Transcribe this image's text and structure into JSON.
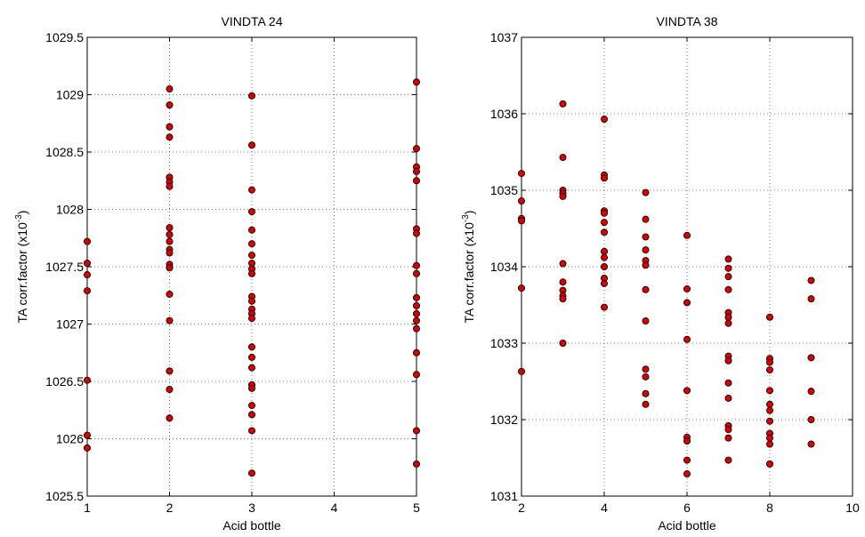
{
  "chart_data": [
    {
      "type": "scatter",
      "title": "VINDTA 24",
      "xlabel": "Acid bottle",
      "ylabel": "TA corr.factor (x10",
      "ylabel_exp": "-3",
      "ylabel_close": ")",
      "xlim": [
        1,
        5
      ],
      "ylim": [
        1025.5,
        1029.5
      ],
      "xticks": [
        1,
        2,
        3,
        4,
        5
      ],
      "yticks": [
        1025.5,
        1026,
        1026.5,
        1027,
        1027.5,
        1028,
        1028.5,
        1029,
        1029.5
      ],
      "xtick_labels": [
        "1",
        "2",
        "3",
        "4",
        "5"
      ],
      "ytick_labels": [
        "1025.5",
        "1026",
        "1026.5",
        "1027",
        "1027.5",
        "1028",
        "1028.5",
        "1029",
        "1029.5"
      ],
      "grid": true,
      "marker_color": "#d40000",
      "points": [
        [
          1,
          1027.72
        ],
        [
          1,
          1027.53
        ],
        [
          1,
          1027.43
        ],
        [
          1,
          1027.29
        ],
        [
          1,
          1026.51
        ],
        [
          1,
          1026.03
        ],
        [
          1,
          1025.92
        ],
        [
          2,
          1029.05
        ],
        [
          2,
          1028.91
        ],
        [
          2,
          1028.72
        ],
        [
          2,
          1028.63
        ],
        [
          2,
          1028.28
        ],
        [
          2,
          1028.24
        ],
        [
          2,
          1028.2
        ],
        [
          2,
          1027.84
        ],
        [
          2,
          1027.78
        ],
        [
          2,
          1027.72
        ],
        [
          2,
          1027.65
        ],
        [
          2,
          1027.62
        ],
        [
          2,
          1027.52
        ],
        [
          2,
          1027.49
        ],
        [
          2,
          1027.26
        ],
        [
          2,
          1027.03
        ],
        [
          2,
          1026.59
        ],
        [
          2,
          1026.43
        ],
        [
          2,
          1026.18
        ],
        [
          3,
          1028.99
        ],
        [
          3,
          1028.56
        ],
        [
          3,
          1028.17
        ],
        [
          3,
          1027.98
        ],
        [
          3,
          1027.82
        ],
        [
          3,
          1027.7
        ],
        [
          3,
          1027.6
        ],
        [
          3,
          1027.53
        ],
        [
          3,
          1027.48
        ],
        [
          3,
          1027.44
        ],
        [
          3,
          1027.24
        ],
        [
          3,
          1027.2
        ],
        [
          3,
          1027.13
        ],
        [
          3,
          1027.09
        ],
        [
          3,
          1027.05
        ],
        [
          3,
          1026.8
        ],
        [
          3,
          1026.71
        ],
        [
          3,
          1026.62
        ],
        [
          3,
          1026.47
        ],
        [
          3,
          1026.44
        ],
        [
          3,
          1026.29
        ],
        [
          3,
          1026.21
        ],
        [
          3,
          1026.07
        ],
        [
          3,
          1025.7
        ],
        [
          5,
          1029.11
        ],
        [
          5,
          1028.53
        ],
        [
          5,
          1028.37
        ],
        [
          5,
          1028.33
        ],
        [
          5,
          1028.25
        ],
        [
          5,
          1027.83
        ],
        [
          5,
          1027.79
        ],
        [
          5,
          1027.51
        ],
        [
          5,
          1027.44
        ],
        [
          5,
          1027.23
        ],
        [
          5,
          1027.16
        ],
        [
          5,
          1027.09
        ],
        [
          5,
          1027.03
        ],
        [
          5,
          1026.96
        ],
        [
          5,
          1026.75
        ],
        [
          5,
          1026.56
        ],
        [
          5,
          1026.07
        ],
        [
          5,
          1025.78
        ]
      ]
    },
    {
      "type": "scatter",
      "title": "VINDTA 38",
      "xlabel": "Acid bottle",
      "ylabel": "TA corr.factor (x10",
      "ylabel_exp": "-3",
      "ylabel_close": ")",
      "xlim": [
        2,
        10
      ],
      "ylim": [
        1031,
        1037
      ],
      "xticks": [
        2,
        4,
        6,
        8,
        10
      ],
      "yticks": [
        1031,
        1032,
        1033,
        1034,
        1035,
        1036,
        1037
      ],
      "xtick_labels": [
        "2",
        "4",
        "6",
        "8",
        "10"
      ],
      "ytick_labels": [
        "1031",
        "1032",
        "1033",
        "1034",
        "1035",
        "1036",
        "1037"
      ],
      "grid": true,
      "marker_color": "#d40000",
      "points": [
        [
          2,
          1035.22
        ],
        [
          2,
          1034.86
        ],
        [
          2,
          1034.63
        ],
        [
          2,
          1034.6
        ],
        [
          2,
          1033.72
        ],
        [
          2,
          1032.63
        ],
        [
          3,
          1036.13
        ],
        [
          3,
          1035.43
        ],
        [
          3,
          1035.0
        ],
        [
          3,
          1034.96
        ],
        [
          3,
          1034.92
        ],
        [
          3,
          1034.04
        ],
        [
          3,
          1033.8
        ],
        [
          3,
          1033.69
        ],
        [
          3,
          1033.62
        ],
        [
          3,
          1033.58
        ],
        [
          3,
          1033.0
        ],
        [
          4,
          1035.93
        ],
        [
          4,
          1035.2
        ],
        [
          4,
          1035.16
        ],
        [
          4,
          1034.73
        ],
        [
          4,
          1034.7
        ],
        [
          4,
          1034.58
        ],
        [
          4,
          1034.45
        ],
        [
          4,
          1034.2
        ],
        [
          4,
          1034.12
        ],
        [
          4,
          1034.0
        ],
        [
          4,
          1033.85
        ],
        [
          4,
          1033.78
        ],
        [
          4,
          1033.47
        ],
        [
          5,
          1034.97
        ],
        [
          5,
          1034.62
        ],
        [
          5,
          1034.39
        ],
        [
          5,
          1034.22
        ],
        [
          5,
          1034.08
        ],
        [
          5,
          1034.02
        ],
        [
          5,
          1033.7
        ],
        [
          5,
          1033.29
        ],
        [
          5,
          1032.66
        ],
        [
          5,
          1032.56
        ],
        [
          5,
          1032.34
        ],
        [
          5,
          1032.2
        ],
        [
          6,
          1034.41
        ],
        [
          6,
          1033.71
        ],
        [
          6,
          1033.53
        ],
        [
          6,
          1033.05
        ],
        [
          6,
          1032.38
        ],
        [
          6,
          1031.77
        ],
        [
          6,
          1031.72
        ],
        [
          6,
          1031.47
        ],
        [
          6,
          1031.29
        ],
        [
          7,
          1034.1
        ],
        [
          7,
          1033.98
        ],
        [
          7,
          1033.87
        ],
        [
          7,
          1033.7
        ],
        [
          7,
          1033.4
        ],
        [
          7,
          1033.34
        ],
        [
          7,
          1033.26
        ],
        [
          7,
          1032.83
        ],
        [
          7,
          1032.77
        ],
        [
          7,
          1032.48
        ],
        [
          7,
          1032.28
        ],
        [
          7,
          1031.92
        ],
        [
          7,
          1031.87
        ],
        [
          7,
          1031.76
        ],
        [
          7,
          1031.47
        ],
        [
          8,
          1033.34
        ],
        [
          8,
          1032.8
        ],
        [
          8,
          1032.75
        ],
        [
          8,
          1032.65
        ],
        [
          8,
          1032.38
        ],
        [
          8,
          1032.2
        ],
        [
          8,
          1032.12
        ],
        [
          8,
          1031.98
        ],
        [
          8,
          1031.82
        ],
        [
          8,
          1031.76
        ],
        [
          8,
          1031.68
        ],
        [
          8,
          1031.42
        ],
        [
          9,
          1033.82
        ],
        [
          9,
          1033.58
        ],
        [
          9,
          1032.81
        ],
        [
          9,
          1032.37
        ],
        [
          9,
          1032.0
        ],
        [
          9,
          1031.68
        ]
      ]
    }
  ]
}
